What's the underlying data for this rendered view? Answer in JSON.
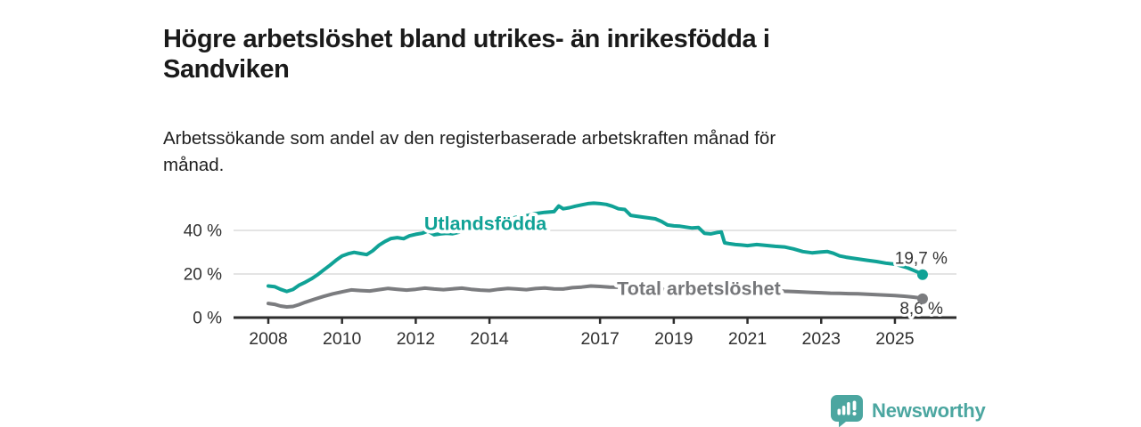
{
  "title": {
    "text": "Högre arbetslöshet bland utrikes- än inrikesfödda i Sandviken",
    "line1": "Högre arbetslöshet bland utrikes- än inrikesfödda i",
    "line2": "Sandviken"
  },
  "subtitle": {
    "text": "Arbetssökande som andel av den registerbaserade arbetskraften månad för månad.",
    "line1": "Arbetssökande som andel av den registerbaserade arbetskraften månad för",
    "line2": "månad."
  },
  "branding": {
    "logo_text": "Newsworthy",
    "logo_icon": "bar-chart-speech-bubble",
    "logo_color": "#4ba6a0"
  },
  "colors": {
    "axis": "#2d2d2d",
    "grid": "#dcdcdc",
    "tick_text": "#303030",
    "value_text": "#333333",
    "background": "#ffffff"
  },
  "chart_data": {
    "type": "line",
    "unit": "%",
    "grid": true,
    "xlim": [
      2007.05,
      2026.6
    ],
    "ylim": [
      0,
      57
    ],
    "x_tick_years": [
      2008,
      2010,
      2012,
      2014,
      2017,
      2019,
      2021,
      2023,
      2025
    ],
    "x_tick_labels": [
      "2008",
      "2010",
      "2012",
      "2014",
      "2017",
      "2019",
      "2021",
      "2023",
      "2025"
    ],
    "y_ticks": [
      {
        "value": 0,
        "label": "0 %"
      },
      {
        "value": 20,
        "label": "20 %"
      },
      {
        "value": 40,
        "label": "40 %"
      }
    ],
    "series": [
      {
        "name": "Utlandsfödda",
        "color": "#10a296",
        "label_color": "#10a296",
        "end_value": 19.7,
        "end_label": "19,7 %",
        "label_pos": {
          "x": 2012.23,
          "y": 40.2
        },
        "points": [
          [
            2008.0,
            14.5
          ],
          [
            2008.17,
            14.2
          ],
          [
            2008.33,
            13.0
          ],
          [
            2008.5,
            12.0
          ],
          [
            2008.67,
            12.9
          ],
          [
            2008.83,
            14.8
          ],
          [
            2009.0,
            16.2
          ],
          [
            2009.17,
            17.8
          ],
          [
            2009.33,
            19.6
          ],
          [
            2009.5,
            21.8
          ],
          [
            2009.67,
            24.0
          ],
          [
            2009.83,
            26.2
          ],
          [
            2010.0,
            28.3
          ],
          [
            2010.17,
            29.3
          ],
          [
            2010.33,
            29.9
          ],
          [
            2010.5,
            29.4
          ],
          [
            2010.67,
            28.9
          ],
          [
            2010.83,
            30.6
          ],
          [
            2011.0,
            33.2
          ],
          [
            2011.17,
            35.0
          ],
          [
            2011.33,
            36.3
          ],
          [
            2011.5,
            36.7
          ],
          [
            2011.67,
            36.2
          ],
          [
            2011.83,
            37.5
          ],
          [
            2012.0,
            38.2
          ],
          [
            2012.17,
            38.7
          ],
          [
            2012.33,
            39.7
          ],
          [
            2012.5,
            38.0
          ],
          [
            2012.67,
            38.4
          ],
          [
            2012.83,
            38.7
          ],
          [
            2013.0,
            38.5
          ],
          [
            2013.17,
            39.2
          ],
          [
            2013.33,
            40.4
          ],
          [
            2013.5,
            40.9
          ],
          [
            2013.67,
            41.6
          ],
          [
            2013.83,
            42.4
          ],
          [
            2014.0,
            43.1
          ],
          [
            2014.25,
            44.3
          ],
          [
            2014.5,
            45.1
          ],
          [
            2014.75,
            46.1
          ],
          [
            2015.0,
            46.7
          ],
          [
            2015.25,
            47.7
          ],
          [
            2015.5,
            48.3
          ],
          [
            2015.75,
            48.6
          ],
          [
            2015.88,
            51.2
          ],
          [
            2016.0,
            49.9
          ],
          [
            2016.17,
            50.4
          ],
          [
            2016.33,
            51.1
          ],
          [
            2016.5,
            51.7
          ],
          [
            2016.67,
            52.3
          ],
          [
            2016.83,
            52.5
          ],
          [
            2017.0,
            52.3
          ],
          [
            2017.17,
            51.9
          ],
          [
            2017.33,
            51.1
          ],
          [
            2017.5,
            49.9
          ],
          [
            2017.67,
            49.6
          ],
          [
            2017.83,
            46.9
          ],
          [
            2018.0,
            46.5
          ],
          [
            2018.17,
            46.1
          ],
          [
            2018.33,
            45.7
          ],
          [
            2018.5,
            45.3
          ],
          [
            2018.67,
            44.1
          ],
          [
            2018.83,
            42.5
          ],
          [
            2019.0,
            42.1
          ],
          [
            2019.17,
            41.9
          ],
          [
            2019.33,
            41.5
          ],
          [
            2019.5,
            41.1
          ],
          [
            2019.67,
            41.3
          ],
          [
            2019.83,
            38.7
          ],
          [
            2020.0,
            38.4
          ],
          [
            2020.17,
            39.0
          ],
          [
            2020.29,
            39.3
          ],
          [
            2020.38,
            34.3
          ],
          [
            2020.5,
            33.9
          ],
          [
            2020.67,
            33.5
          ],
          [
            2020.83,
            33.3
          ],
          [
            2021.0,
            33.0
          ],
          [
            2021.25,
            33.5
          ],
          [
            2021.5,
            33.1
          ],
          [
            2021.75,
            32.7
          ],
          [
            2022.0,
            32.4
          ],
          [
            2022.25,
            31.5
          ],
          [
            2022.5,
            30.3
          ],
          [
            2022.75,
            29.7
          ],
          [
            2023.0,
            30.1
          ],
          [
            2023.17,
            30.3
          ],
          [
            2023.33,
            29.5
          ],
          [
            2023.5,
            28.3
          ],
          [
            2023.67,
            27.7
          ],
          [
            2023.83,
            27.3
          ],
          [
            2024.0,
            26.9
          ],
          [
            2024.25,
            26.3
          ],
          [
            2024.5,
            25.7
          ],
          [
            2024.75,
            25.0
          ],
          [
            2025.0,
            24.5
          ],
          [
            2025.17,
            23.7
          ],
          [
            2025.33,
            22.9
          ],
          [
            2025.5,
            21.7
          ],
          [
            2025.67,
            20.5
          ],
          [
            2025.75,
            19.7
          ]
        ]
      },
      {
        "name": "Total arbetslöshet",
        "color": "#7b7c7f",
        "label_color": "#76777a",
        "end_value": 8.6,
        "end_label": "8,6 %",
        "label_pos": {
          "x": 2017.46,
          "y": 10.4
        },
        "points": [
          [
            2008.0,
            6.5
          ],
          [
            2008.17,
            6.1
          ],
          [
            2008.33,
            5.3
          ],
          [
            2008.5,
            4.9
          ],
          [
            2008.67,
            5.1
          ],
          [
            2008.83,
            5.9
          ],
          [
            2009.0,
            7.0
          ],
          [
            2009.25,
            8.4
          ],
          [
            2009.5,
            9.7
          ],
          [
            2009.75,
            10.9
          ],
          [
            2010.0,
            11.8
          ],
          [
            2010.25,
            12.7
          ],
          [
            2010.5,
            12.4
          ],
          [
            2010.75,
            12.2
          ],
          [
            2011.0,
            12.8
          ],
          [
            2011.25,
            13.4
          ],
          [
            2011.5,
            13.0
          ],
          [
            2011.75,
            12.6
          ],
          [
            2012.0,
            13.0
          ],
          [
            2012.25,
            13.5
          ],
          [
            2012.5,
            13.1
          ],
          [
            2012.75,
            12.8
          ],
          [
            2013.0,
            13.2
          ],
          [
            2013.25,
            13.5
          ],
          [
            2013.5,
            13.0
          ],
          [
            2013.75,
            12.6
          ],
          [
            2014.0,
            12.4
          ],
          [
            2014.25,
            13.0
          ],
          [
            2014.5,
            13.4
          ],
          [
            2014.75,
            13.1
          ],
          [
            2015.0,
            12.8
          ],
          [
            2015.25,
            13.3
          ],
          [
            2015.5,
            13.6
          ],
          [
            2015.75,
            13.2
          ],
          [
            2016.0,
            13.1
          ],
          [
            2016.25,
            13.7
          ],
          [
            2016.5,
            14.0
          ],
          [
            2016.75,
            14.5
          ],
          [
            2017.0,
            14.3
          ],
          [
            2017.25,
            14.0
          ],
          [
            2017.5,
            13.9
          ],
          [
            2017.75,
            13.5
          ],
          [
            2018.0,
            13.2
          ],
          [
            2018.25,
            13.6
          ],
          [
            2018.5,
            13.4
          ],
          [
            2018.75,
            13.0
          ],
          [
            2019.0,
            12.8
          ],
          [
            2019.25,
            13.1
          ],
          [
            2019.5,
            13.3
          ],
          [
            2019.75,
            13.0
          ],
          [
            2020.0,
            13.2
          ],
          [
            2020.25,
            14.0
          ],
          [
            2020.5,
            14.2
          ],
          [
            2020.75,
            13.9
          ],
          [
            2021.0,
            13.6
          ],
          [
            2021.25,
            13.3
          ],
          [
            2021.5,
            12.9
          ],
          [
            2021.75,
            12.5
          ],
          [
            2022.0,
            12.1
          ],
          [
            2022.25,
            11.9
          ],
          [
            2022.5,
            11.7
          ],
          [
            2022.75,
            11.5
          ],
          [
            2023.0,
            11.4
          ],
          [
            2023.25,
            11.2
          ],
          [
            2023.5,
            11.1
          ],
          [
            2023.75,
            11.0
          ],
          [
            2024.0,
            10.9
          ],
          [
            2024.25,
            10.7
          ],
          [
            2024.5,
            10.5
          ],
          [
            2024.75,
            10.3
          ],
          [
            2025.0,
            10.1
          ],
          [
            2025.25,
            9.8
          ],
          [
            2025.5,
            9.4
          ],
          [
            2025.67,
            9.0
          ],
          [
            2025.75,
            8.6
          ]
        ]
      }
    ]
  }
}
